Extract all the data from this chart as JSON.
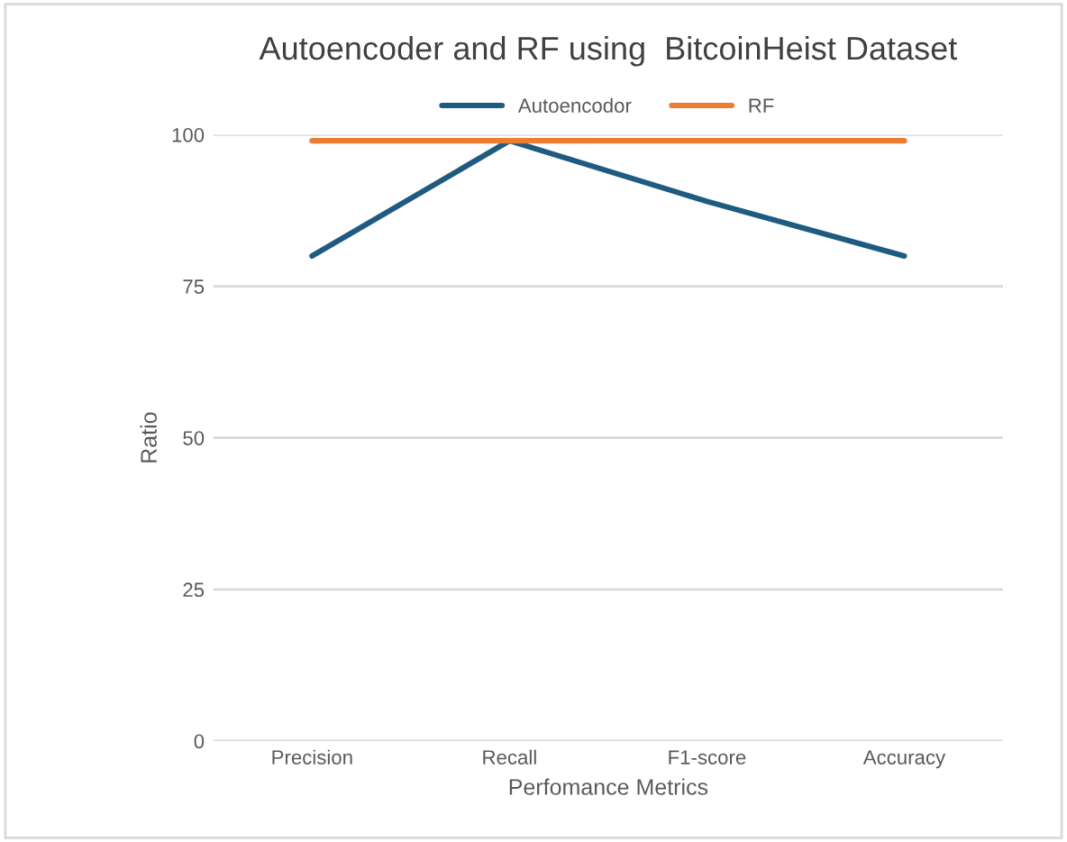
{
  "chart_data": {
    "type": "line",
    "title": "Autoencoder and RF using  BitcoinHeist Dataset",
    "xlabel": "Perfomance Metrics",
    "ylabel": "Ratio",
    "categories": [
      "Precision",
      "Recall",
      "F1-score",
      "Accuracy"
    ],
    "series": [
      {
        "name": "Autoencodor",
        "color": "#1f5b80",
        "values": [
          80,
          99,
          89,
          80
        ]
      },
      {
        "name": "RF",
        "color": "#ed7d31",
        "values": [
          99,
          99,
          99,
          99
        ]
      }
    ],
    "ylim": [
      0,
      100
    ],
    "yticks": [
      0,
      25,
      50,
      75,
      100
    ],
    "grid": "y",
    "legend": "top",
    "marker": "none",
    "line_style": "solid"
  }
}
